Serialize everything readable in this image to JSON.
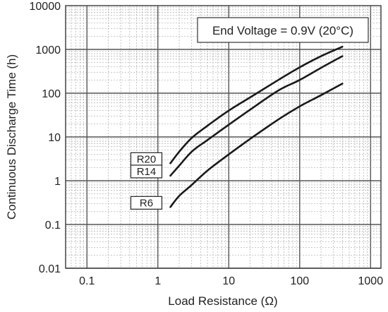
{
  "chart_data": {
    "type": "line",
    "title": "",
    "xlabel": "Load Resistance (Ω)",
    "ylabel": "Continuous Discharge Time (h)",
    "x_scale": "log",
    "y_scale": "log",
    "xlim": [
      0.05,
      1400
    ],
    "ylim": [
      0.01,
      10000
    ],
    "x_ticks": [
      0.1,
      1,
      10,
      100,
      1000
    ],
    "x_tick_labels": [
      "0.1",
      "1",
      "10",
      "100",
      "1000"
    ],
    "y_ticks": [
      0.01,
      0.1,
      1,
      10,
      100,
      1000,
      10000
    ],
    "y_tick_labels": [
      "0.01",
      "0.1",
      "1",
      "10",
      "100",
      "1000",
      "10000"
    ],
    "grid": true,
    "annotation": "End Voltage = 0.9V (20°C)",
    "series": [
      {
        "name": "R20",
        "x": [
          1.5,
          2,
          3,
          5,
          10,
          20,
          50,
          100,
          200,
          400
        ],
        "y": [
          2.5,
          4.6,
          9.5,
          18,
          40,
          80,
          200,
          390,
          700,
          1150
        ]
      },
      {
        "name": "R14",
        "x": [
          1.5,
          2,
          3,
          5,
          10,
          20,
          50,
          100,
          200,
          400
        ],
        "y": [
          1.3,
          2.2,
          4.6,
          8.5,
          19,
          42,
          115,
          200,
          380,
          700
        ]
      },
      {
        "name": "R6",
        "x": [
          1.5,
          2,
          3,
          5,
          10,
          20,
          50,
          100,
          200,
          400
        ],
        "y": [
          0.25,
          0.45,
          0.8,
          1.7,
          4,
          9,
          25,
          50,
          90,
          165
        ]
      }
    ]
  }
}
